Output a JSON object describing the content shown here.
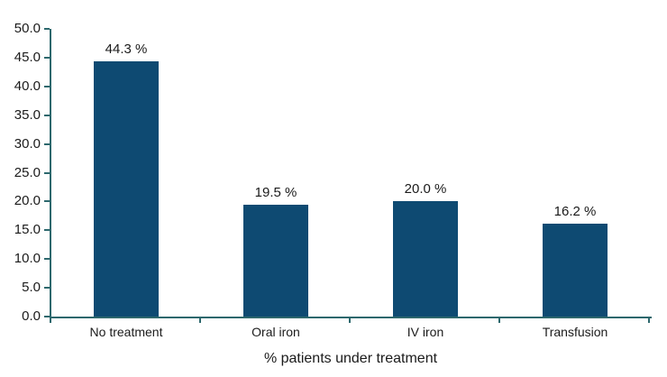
{
  "chart_data": {
    "type": "bar",
    "title": "",
    "xlabel": "% patients under treatment",
    "ylabel": "",
    "categories": [
      "No treatment",
      "Oral iron",
      "IV iron",
      "Transfusion"
    ],
    "values": [
      44.3,
      19.5,
      20.0,
      16.2
    ],
    "value_labels": [
      "44.3 %",
      "19.5 %",
      "20.0 %",
      "16.2 %"
    ],
    "ylim": [
      0,
      50
    ],
    "ytick_step": 5,
    "ytick_labels": [
      "0.0",
      "5.0",
      "10.0",
      "15.0",
      "20.0",
      "25.0",
      "30.0",
      "35.0",
      "40.0",
      "45.0",
      "50.0"
    ],
    "grid": false,
    "legend": false,
    "layout_hints": {
      "bar_orientation": "vertical",
      "axes_shown": [
        "left",
        "bottom"
      ],
      "value_labels_position": "above-bars"
    },
    "colors": {
      "bar": "#0e4a72",
      "axis": "#2d686d",
      "text": "#1b1b1b",
      "background": "#ffffff"
    }
  }
}
